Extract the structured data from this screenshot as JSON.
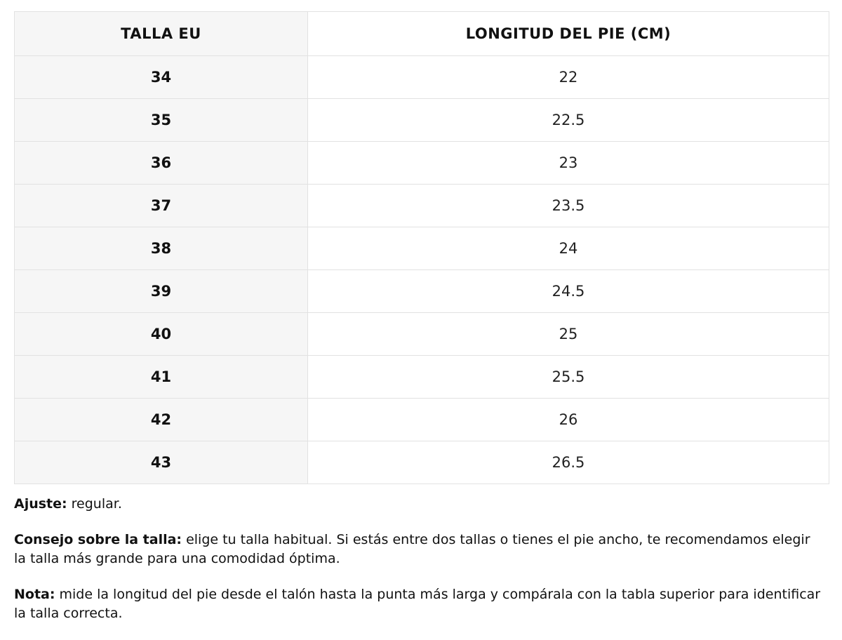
{
  "table": {
    "headers": {
      "size": "TALLA EU",
      "length": "LONGITUD DEL PIE (CM)"
    },
    "rows": [
      {
        "size": "34",
        "length": "22"
      },
      {
        "size": "35",
        "length": "22.5"
      },
      {
        "size": "36",
        "length": "23"
      },
      {
        "size": "37",
        "length": "23.5"
      },
      {
        "size": "38",
        "length": "24"
      },
      {
        "size": "39",
        "length": "24.5"
      },
      {
        "size": "40",
        "length": "25"
      },
      {
        "size": "41",
        "length": "25.5"
      },
      {
        "size": "42",
        "length": "26"
      },
      {
        "size": "43",
        "length": "26.5"
      }
    ]
  },
  "notes": {
    "fit": {
      "label": "Ajuste:",
      "text": " regular."
    },
    "advice": {
      "label": "Consejo sobre la talla:",
      "text": " elige tu talla habitual. Si estás entre dos tallas o tienes el pie ancho, te recomendamos elegir la talla más grande para una comodidad óptima."
    },
    "note": {
      "label": "Nota:",
      "text": " mide la longitud del pie desde el talón hasta la punta más larga y compárala con la tabla superior para identificar la talla correcta."
    }
  }
}
